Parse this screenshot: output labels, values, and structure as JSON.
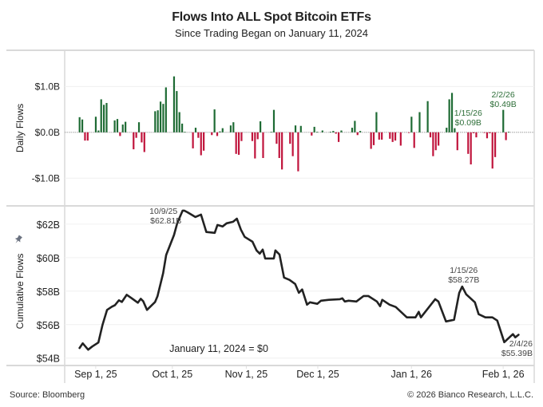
{
  "chart_data": [
    {
      "type": "bar",
      "panel": "top",
      "title": "Flows Into ALL Spot Bitcoin ETFs",
      "subtitle": "Since Trading Began on January 11, 2024",
      "ylabel": "Daily Flows",
      "ylim": [
        -1.5,
        1.65
      ],
      "yticks": [
        {
          "v": 1.0,
          "label": "$1.0B"
        },
        {
          "v": 0.0,
          "label": "$0.0B"
        },
        {
          "v": -1.0,
          "label": "-$1.0B"
        }
      ],
      "units": "USD billions",
      "colors": {
        "positive": "#1e6b34",
        "negative": "#c0143c"
      },
      "bars": [
        [
          0,
          0.33
        ],
        [
          1,
          0.28
        ],
        [
          2,
          -0.18
        ],
        [
          3,
          -0.18
        ],
        [
          6,
          0.34
        ],
        [
          7,
          0.04
        ],
        [
          8,
          0.72
        ],
        [
          9,
          0.6
        ],
        [
          10,
          0.64
        ],
        [
          13,
          0.26
        ],
        [
          14,
          0.29
        ],
        [
          15,
          -0.08
        ],
        [
          16,
          0.17
        ],
        [
          17,
          0.23
        ],
        [
          20,
          -0.37
        ],
        [
          21,
          -0.12
        ],
        [
          22,
          0.22
        ],
        [
          23,
          -0.22
        ],
        [
          24,
          -0.43
        ],
        [
          28,
          0.46
        ],
        [
          29,
          0.48
        ],
        [
          30,
          0.67
        ],
        [
          31,
          0.62
        ],
        [
          32,
          0.98
        ],
        [
          35,
          1.22
        ],
        [
          36,
          0.9
        ],
        [
          37,
          0.44
        ],
        [
          38,
          0.19
        ],
        [
          39,
          0.01
        ],
        [
          42,
          -0.35
        ],
        [
          43,
          0.1
        ],
        [
          44,
          -0.12
        ],
        [
          45,
          -0.5
        ],
        [
          46,
          -0.4
        ],
        [
          49,
          -0.06
        ],
        [
          50,
          0.5
        ],
        [
          51,
          -0.08
        ],
        [
          52,
          0.02
        ],
        [
          53,
          0.09
        ],
        [
          56,
          0.15
        ],
        [
          57,
          0.22
        ],
        [
          58,
          -0.47
        ],
        [
          59,
          -0.49
        ],
        [
          60,
          -0.19
        ],
        [
          64,
          -0.19
        ],
        [
          65,
          -0.57
        ],
        [
          66,
          -0.15
        ],
        [
          67,
          0.24
        ],
        [
          68,
          -0.56
        ],
        [
          71,
          0.01
        ],
        [
          72,
          0.49
        ],
        [
          73,
          -0.25
        ],
        [
          74,
          -0.56
        ],
        [
          75,
          -0.81
        ],
        [
          78,
          -0.25
        ],
        [
          79,
          -0.52
        ],
        [
          80,
          0.15
        ],
        [
          81,
          -0.85
        ],
        [
          82,
          0.14
        ],
        [
          86,
          -0.07
        ],
        [
          87,
          0.12
        ],
        [
          88,
          0.01
        ],
        [
          90,
          0.04
        ],
        [
          93,
          0.01
        ],
        [
          94,
          0.03
        ],
        [
          95,
          -0.03
        ],
        [
          96,
          -0.21
        ],
        [
          97,
          0.04
        ],
        [
          101,
          0.1
        ],
        [
          102,
          0.25
        ],
        [
          103,
          -0.06
        ],
        [
          104,
          0.03
        ],
        [
          108,
          -0.36
        ],
        [
          109,
          -0.28
        ],
        [
          110,
          0.44
        ],
        [
          111,
          -0.16
        ],
        [
          112,
          -0.16
        ],
        [
          115,
          -0.14
        ],
        [
          116,
          -0.21
        ],
        [
          117,
          -0.18
        ],
        [
          119,
          -0.29
        ],
        [
          122,
          -0.01
        ],
        [
          123,
          0.34
        ],
        [
          124,
          -0.34
        ],
        [
          126,
          0.44
        ],
        [
          129,
          0.68
        ],
        [
          130,
          -0.11
        ],
        [
          131,
          -0.52
        ],
        [
          132,
          -0.39
        ],
        [
          133,
          -0.29
        ],
        [
          136,
          0.1
        ],
        [
          137,
          0.72
        ],
        [
          138,
          0.86
        ],
        [
          139,
          0.09
        ],
        [
          140,
          -0.39
        ],
        [
          144,
          -0.47
        ],
        [
          145,
          -0.7
        ],
        [
          146,
          -0.02
        ],
        [
          147,
          -0.11
        ],
        [
          150,
          -0.01
        ],
        [
          151,
          -0.13
        ],
        [
          152,
          -0.02
        ],
        [
          153,
          -0.79
        ],
        [
          154,
          -0.54
        ],
        [
          157,
          0.49
        ],
        [
          158,
          -0.17
        ],
        [
          159,
          0.01
        ]
      ],
      "annotations": [
        {
          "x": 139,
          "v": 0.09,
          "line1": "1/15/26",
          "line2": "$0.09B"
        },
        {
          "x": 157,
          "v": 0.49,
          "line1": "2/2/26",
          "line2": "$0.49B"
        }
      ]
    },
    {
      "type": "line",
      "panel": "bottom",
      "ylabel": "Cumulative Flows",
      "ylim": [
        53.7,
        62.9
      ],
      "yticks": [
        {
          "v": 62,
          "label": "$62B"
        },
        {
          "v": 60,
          "label": "$60B"
        },
        {
          "v": 58,
          "label": "$58B"
        },
        {
          "v": 56,
          "label": "$56B"
        },
        {
          "v": 54,
          "label": "$54B"
        }
      ],
      "color": "#222222",
      "note": "January 11, 2024 = $0",
      "points": [
        [
          0,
          54.6
        ],
        [
          1.2,
          54.88
        ],
        [
          3.2,
          54.5
        ],
        [
          4.7,
          54.69
        ],
        [
          7,
          54.93
        ],
        [
          8.5,
          55.97
        ],
        [
          10.2,
          56.88
        ],
        [
          12,
          57.07
        ],
        [
          13.1,
          57.16
        ],
        [
          14.6,
          57.45
        ],
        [
          15.7,
          57.35
        ],
        [
          17.5,
          57.78
        ],
        [
          19.2,
          57.59
        ],
        [
          21.6,
          57.31
        ],
        [
          22.7,
          57.54
        ],
        [
          23.6,
          57.4
        ],
        [
          25,
          56.88
        ],
        [
          28,
          57.35
        ],
        [
          28.9,
          57.69
        ],
        [
          31,
          59.07
        ],
        [
          32.1,
          60.16
        ],
        [
          35,
          61.35
        ],
        [
          36.2,
          62.05
        ],
        [
          38.2,
          62.81
        ],
        [
          38.8,
          62.81
        ],
        [
          40,
          62.71
        ],
        [
          42.9,
          62.43
        ],
        [
          45,
          62.57
        ],
        [
          47,
          61.53
        ],
        [
          50.1,
          61.48
        ],
        [
          51.1,
          61.95
        ],
        [
          53,
          61.86
        ],
        [
          54.5,
          62.05
        ],
        [
          56.9,
          62.14
        ],
        [
          58.3,
          62.33
        ],
        [
          59.8,
          61.67
        ],
        [
          61.2,
          61.24
        ],
        [
          64.1,
          60.95
        ],
        [
          65.6,
          60.43
        ],
        [
          66.8,
          60.24
        ],
        [
          67.9,
          60.48
        ],
        [
          68.8,
          59.95
        ],
        [
          72,
          59.95
        ],
        [
          72.6,
          60.43
        ],
        [
          74.1,
          60.19
        ],
        [
          75.8,
          58.81
        ],
        [
          77.8,
          58.67
        ],
        [
          79.9,
          58.43
        ],
        [
          81.3,
          57.9
        ],
        [
          82.5,
          58.1
        ],
        [
          84.3,
          57.19
        ],
        [
          85.4,
          57.33
        ],
        [
          88.1,
          57.24
        ],
        [
          89.5,
          57.43
        ],
        [
          92.4,
          57.48
        ],
        [
          96.5,
          57.52
        ],
        [
          97.4,
          57.57
        ],
        [
          98.3,
          57.38
        ],
        [
          99.7,
          57.43
        ],
        [
          102.6,
          57.38
        ],
        [
          105.3,
          57.71
        ],
        [
          107,
          57.71
        ],
        [
          110.2,
          57.38
        ],
        [
          111.4,
          57.1
        ],
        [
          112.2,
          57.48
        ],
        [
          114.9,
          57.19
        ],
        [
          117.2,
          57.05
        ],
        [
          121.3,
          56.43
        ],
        [
          124.5,
          56.43
        ],
        [
          125.7,
          56.76
        ],
        [
          126.5,
          56.43
        ],
        [
          131.8,
          57.52
        ],
        [
          133,
          57.38
        ],
        [
          135.8,
          56.19
        ],
        [
          138.8,
          56.29
        ],
        [
          140.7,
          57.9
        ],
        [
          141.8,
          58.27
        ],
        [
          143.3,
          57.81
        ],
        [
          146.5,
          57.33
        ],
        [
          147.9,
          56.62
        ],
        [
          150.4,
          56.43
        ],
        [
          153,
          56.43
        ],
        [
          154.8,
          56.24
        ],
        [
          157.4,
          54.95
        ],
        [
          160.6,
          55.43
        ],
        [
          161.5,
          55.24
        ],
        [
          162.7,
          55.39
        ]
      ],
      "annotations": [
        {
          "x": 38.5,
          "v": 62.81,
          "line1": "10/9/25",
          "line2": "$62.81B"
        },
        {
          "x": 141.8,
          "v": 58.27,
          "line1": "1/15/26",
          "line2": "$58.27B"
        },
        {
          "x": 162.7,
          "v": 55.39,
          "line1": "2/4/26",
          "line2": "$55.39B"
        }
      ]
    }
  ],
  "xaxis": {
    "xlim": [
      -5.5,
      168.5
    ],
    "ticks": [
      {
        "x": 6,
        "label": "Sep 1, 25"
      },
      {
        "x": 34.4,
        "label": "Oct 1, 25"
      },
      {
        "x": 61.8,
        "label": "Nov 1, 25"
      },
      {
        "x": 88.3,
        "label": "Dec 1, 25"
      },
      {
        "x": 123,
        "label": "Jan 1, 26"
      },
      {
        "x": 157,
        "label": "Feb 1, 26"
      }
    ]
  },
  "header": {
    "title": "Flows Into ALL Spot Bitcoin ETFs",
    "subtitle": "Since Trading Began on January 11, 2024"
  },
  "footer": {
    "source": "Source: Bloomberg",
    "copyright": "© 2026 Bianco Research, L.L.C."
  },
  "icons": {
    "pin": "pin-icon"
  }
}
